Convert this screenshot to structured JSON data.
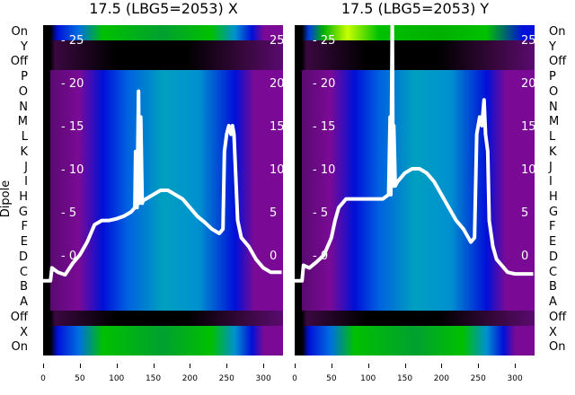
{
  "chart_data": [
    {
      "type": "heatmap",
      "title": "17.5 (LBG5=2053) X",
      "ylabel": "Dipole",
      "row_labels": [
        "On",
        "Y",
        "Off",
        "P",
        "O",
        "N",
        "M",
        "L",
        "K",
        "J",
        "I",
        "H",
        "G",
        "F",
        "E",
        "D",
        "C",
        "B",
        "A",
        "Off",
        "X",
        "On"
      ],
      "xticks": [
        "0",
        "50",
        "100",
        "150",
        "200",
        "250",
        "300"
      ],
      "xlim": [
        0,
        325
      ],
      "inner_yticks": [
        "25",
        "20",
        "15",
        "10",
        "5",
        "0"
      ],
      "inner_ylim": [
        -7,
        26
      ],
      "line": {
        "x": [
          0,
          10,
          12,
          20,
          30,
          40,
          50,
          60,
          70,
          80,
          90,
          100,
          110,
          120,
          125,
          126,
          128,
          130,
          131,
          133,
          135,
          136,
          140,
          150,
          160,
          170,
          180,
          190,
          200,
          210,
          220,
          230,
          240,
          245,
          247,
          250,
          253,
          256,
          258,
          260,
          262,
          265,
          270,
          280,
          290,
          300,
          310,
          320,
          325
        ],
        "y": [
          -3,
          -3,
          -1.5,
          -2,
          -2.3,
          -1,
          0,
          1.5,
          3.5,
          4,
          4,
          4.2,
          4.5,
          5,
          5.5,
          12,
          5.5,
          19,
          6,
          16,
          6,
          6.3,
          6.5,
          7,
          7.5,
          7.5,
          7,
          6.5,
          5.5,
          4.5,
          3.8,
          3,
          2.5,
          3,
          12,
          14,
          15,
          14,
          15,
          14,
          10,
          4,
          2,
          1,
          -0.5,
          -1.5,
          -2,
          -2,
          -2
        ]
      }
    },
    {
      "type": "heatmap",
      "title": "17.5 (LBG5=2053) Y",
      "ylabel": "",
      "row_labels": [
        "On",
        "Y",
        "Off",
        "P",
        "O",
        "N",
        "M",
        "L",
        "K",
        "J",
        "I",
        "H",
        "G",
        "F",
        "E",
        "D",
        "C",
        "B",
        "A",
        "Off",
        "X",
        "On"
      ],
      "xticks": [
        "0",
        "50",
        "100",
        "150",
        "200",
        "250",
        "300"
      ],
      "xlim": [
        0,
        325
      ],
      "inner_yticks": [
        "25",
        "20",
        "15",
        "10",
        "5",
        "0"
      ],
      "inner_ylim": [
        -7,
        26
      ],
      "line": {
        "x": [
          0,
          10,
          12,
          20,
          30,
          40,
          50,
          55,
          60,
          70,
          80,
          100,
          120,
          128,
          130,
          131,
          133,
          134,
          135,
          137,
          140,
          150,
          160,
          170,
          180,
          190,
          200,
          210,
          220,
          230,
          240,
          245,
          248,
          252,
          255,
          258,
          260,
          263,
          265,
          270,
          275,
          280,
          290,
          300,
          320,
          325
        ],
        "y": [
          -3,
          -3,
          -1.2,
          -1.5,
          -0.8,
          0,
          2,
          4,
          5.5,
          6.5,
          6.5,
          6.5,
          6.5,
          7,
          16,
          7,
          28,
          8,
          15,
          8,
          8.5,
          9.5,
          10,
          10,
          9.5,
          8.5,
          7,
          5.5,
          4,
          3,
          1.5,
          2,
          14,
          16,
          15,
          18,
          14,
          12,
          4,
          1,
          -0.5,
          -1,
          -2,
          -2.2,
          -2.2,
          -2.2
        ]
      }
    }
  ],
  "colors": {
    "line": "#ffffff",
    "purple": "#7a0a96",
    "blue": "#0010d8",
    "cyan": "#00a0c0",
    "green": "#00c000",
    "black": "#000000"
  }
}
